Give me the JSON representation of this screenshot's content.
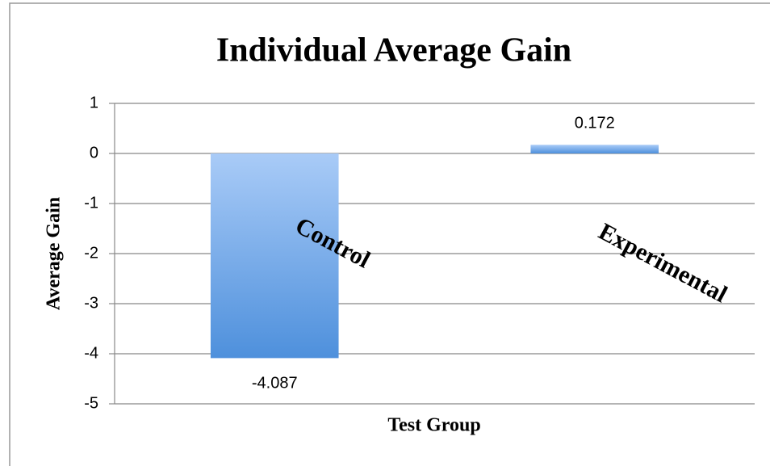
{
  "chart_data": {
    "type": "bar",
    "title": "Individual Average Gain",
    "x_label": "Test Group",
    "y_label": "Average Gain",
    "categories": [
      "Control",
      "Experimental"
    ],
    "values": [
      -4.087,
      0.172
    ],
    "ylim": [
      -5,
      1
    ],
    "yticks": [
      -5,
      -4,
      -3,
      -2,
      -1,
      0,
      1
    ],
    "grid": true
  }
}
